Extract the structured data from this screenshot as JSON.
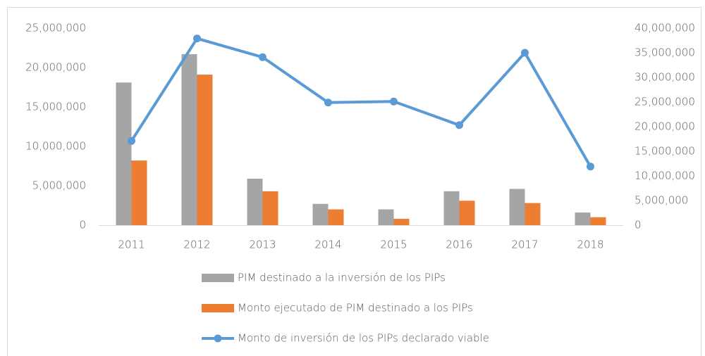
{
  "chart_data": {
    "type": "bar",
    "categories": [
      "2011",
      "2012",
      "2013",
      "2014",
      "2015",
      "2016",
      "2017",
      "2018"
    ],
    "series": [
      {
        "name": "PIM  destinado a la inversión de los PIPs",
        "color": "#a5a5a5",
        "values": [
          18100000,
          21700000,
          5900000,
          2700000,
          2000000,
          4300000,
          4600000,
          1600000
        ]
      },
      {
        "name": "Monto ejecutado de PIM destinado a los PIPs",
        "color": "#ed7d31",
        "values": [
          8200000,
          19100000,
          4300000,
          2000000,
          800000,
          3100000,
          2800000,
          1000000
        ]
      },
      {
        "name": "Monto de inversión de los PIPs declarado viable",
        "color": "#5b9bd5",
        "type": "line",
        "axis": "y2",
        "values": [
          17100000,
          37900000,
          34100000,
          24900000,
          25100000,
          20300000,
          35000000,
          11900000
        ]
      }
    ],
    "ylim": [
      0,
      25000000
    ],
    "yticks": [
      0,
      {
        "value": 5000000,
        "label": "5,000,000"
      },
      {
        "value": 10000000,
        "label": "10,000,000"
      },
      {
        "value": 15000000,
        "label": "15,000,000"
      },
      {
        "value": 20000000,
        "label": "20,000,000"
      },
      {
        "value": 25000000,
        "label": "25,000,000"
      }
    ],
    "y2lim": [
      0,
      40000000
    ],
    "y2ticks": [
      0,
      {
        "value": 5000000,
        "label": "5,000,000"
      },
      {
        "value": 10000000,
        "label": "10,000,000"
      },
      {
        "value": 15000000,
        "label": "15,000,000"
      },
      {
        "value": 20000000,
        "label": "20,000,000"
      },
      {
        "value": 25000000,
        "label": "25,000,000"
      },
      {
        "value": 30000000,
        "label": "30,000,000"
      },
      {
        "value": 35000000,
        "label": "35,000,000"
      },
      {
        "value": 40000000,
        "label": "40,000,000"
      }
    ],
    "grid": false,
    "legend": "bottom"
  }
}
